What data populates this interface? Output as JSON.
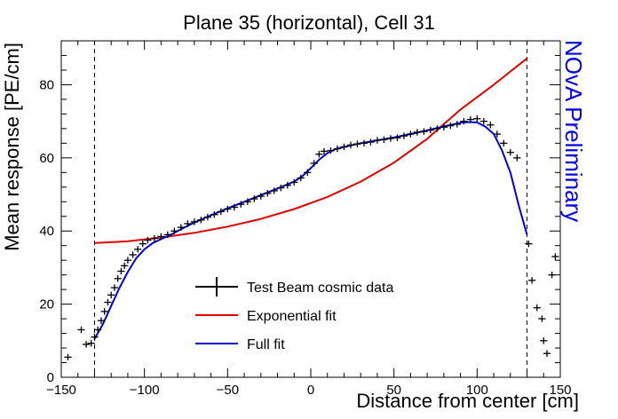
{
  "chart_data": {
    "type": "scatter",
    "title": "Plane 35 (horizontal), Cell 31",
    "xlabel": "Distance from center [cm]",
    "ylabel": "Mean response [PE/cm]",
    "xlim": [
      -150,
      150
    ],
    "ylim": [
      0,
      92
    ],
    "xticks": [
      -150,
      -100,
      -50,
      0,
      50,
      100,
      150
    ],
    "yticks": [
      0,
      20,
      40,
      60,
      80
    ],
    "watermark": "NOvA Preliminary",
    "watermark_color": "#0000ee",
    "vertical_lines": [
      -130,
      130
    ],
    "legend": {
      "placement": "center-bottom"
    },
    "series": [
      {
        "name": "Test Beam cosmic data",
        "kind": "errorbar",
        "color": "#000000",
        "points": [
          [
            -146,
            5.5
          ],
          [
            -138,
            13
          ],
          [
            -135,
            9
          ],
          [
            -132,
            9.3
          ],
          [
            -130,
            11
          ],
          [
            -128,
            13
          ],
          [
            -126,
            15.5
          ],
          [
            -124,
            18
          ],
          [
            -122,
            20.5
          ],
          [
            -120,
            22.5
          ],
          [
            -118,
            24.5
          ],
          [
            -116,
            27
          ],
          [
            -114,
            29
          ],
          [
            -112,
            30.5
          ],
          [
            -110,
            32
          ],
          [
            -107,
            33.5
          ],
          [
            -104,
            35
          ],
          [
            -101,
            36.5
          ],
          [
            -98,
            37.5
          ],
          [
            -94,
            38
          ],
          [
            -90,
            38.5
          ],
          [
            -86,
            39
          ],
          [
            -82,
            40
          ],
          [
            -78,
            41
          ],
          [
            -74,
            42
          ],
          [
            -70,
            42.5
          ],
          [
            -66,
            43
          ],
          [
            -62,
            43.8
          ],
          [
            -58,
            44.5
          ],
          [
            -54,
            45.3
          ],
          [
            -50,
            46
          ],
          [
            -46,
            46.5
          ],
          [
            -42,
            47.3
          ],
          [
            -38,
            48
          ],
          [
            -34,
            48.8
          ],
          [
            -30,
            49.5
          ],
          [
            -26,
            50.3
          ],
          [
            -22,
            51
          ],
          [
            -18,
            51.8
          ],
          [
            -14,
            52.5
          ],
          [
            -10,
            53.3
          ],
          [
            -6,
            54.5
          ],
          [
            -2,
            56
          ],
          [
            2,
            58.5
          ],
          [
            5,
            61
          ],
          [
            8,
            61.8
          ],
          [
            12,
            62
          ],
          [
            16,
            62.5
          ],
          [
            20,
            63
          ],
          [
            24,
            63.5
          ],
          [
            28,
            63.8
          ],
          [
            32,
            64
          ],
          [
            36,
            64.3
          ],
          [
            40,
            64.8
          ],
          [
            44,
            65
          ],
          [
            48,
            65.3
          ],
          [
            52,
            65.5
          ],
          [
            56,
            66
          ],
          [
            60,
            66.5
          ],
          [
            64,
            67
          ],
          [
            68,
            67.2
          ],
          [
            72,
            67.6
          ],
          [
            76,
            68
          ],
          [
            80,
            68.4
          ],
          [
            84,
            68.8
          ],
          [
            88,
            69.2
          ],
          [
            92,
            70
          ],
          [
            96,
            70.5
          ],
          [
            100,
            70.7
          ],
          [
            104,
            70
          ],
          [
            108,
            69
          ],
          [
            112,
            66.5
          ],
          [
            116,
            64
          ],
          [
            120,
            61.5
          ],
          [
            124,
            60
          ],
          [
            131,
            36.5
          ],
          [
            133,
            26.5
          ],
          [
            136,
            19
          ],
          [
            139,
            16
          ],
          [
            140,
            10
          ],
          [
            142,
            6.5
          ],
          [
            145,
            28
          ],
          [
            147,
            33
          ]
        ]
      },
      {
        "name": "Exponential fit",
        "kind": "line",
        "color": "#e00000",
        "x": [
          -130,
          -110,
          -90,
          -70,
          -50,
          -30,
          -10,
          10,
          30,
          50,
          70,
          90,
          110,
          130
        ],
        "y": [
          36.7,
          37.2,
          38.2,
          39.5,
          41.2,
          43.3,
          46.0,
          49.3,
          53.5,
          58.7,
          65.2,
          73.2,
          80.0,
          87.2
        ]
      },
      {
        "name": "Full fit",
        "kind": "line",
        "color": "#0000e0",
        "x": [
          -130,
          -125,
          -120,
          -115,
          -110,
          -105,
          -100,
          -95,
          -90,
          -85,
          -80,
          -75,
          -70,
          -60,
          -50,
          -40,
          -30,
          -20,
          -10,
          -5,
          0,
          5,
          10,
          15,
          20,
          30,
          40,
          50,
          60,
          70,
          80,
          90,
          95,
          100,
          105,
          110,
          115,
          120,
          125,
          130
        ],
        "y": [
          10.5,
          14.5,
          19.5,
          24.5,
          28.8,
          32.5,
          35.0,
          36.7,
          37.8,
          38.8,
          40.0,
          41.2,
          42.3,
          44.3,
          46.2,
          48.0,
          49.8,
          51.6,
          53.5,
          55.0,
          57.2,
          59.5,
          61.3,
          62.4,
          63.0,
          64.0,
          64.8,
          65.6,
          66.5,
          67.5,
          68.6,
          69.6,
          69.8,
          69.7,
          68.5,
          66.5,
          62.0,
          56.0,
          47.0,
          39.0
        ]
      }
    ]
  }
}
